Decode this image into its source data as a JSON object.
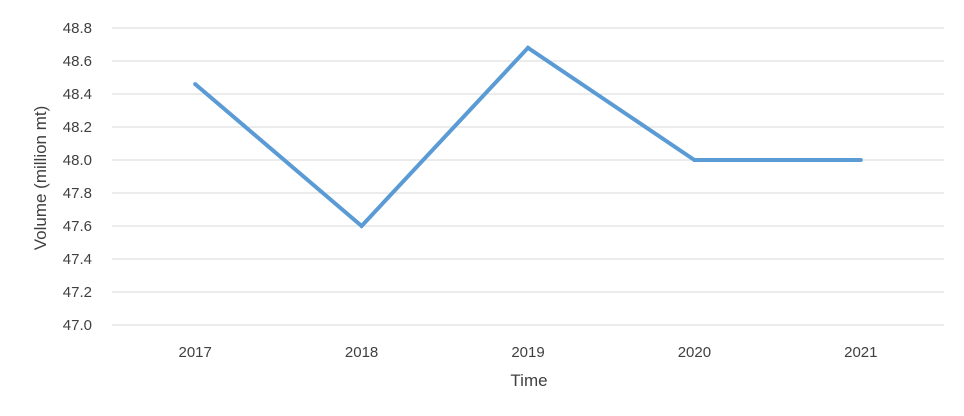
{
  "chart_data": {
    "type": "line",
    "categories": [
      "2017",
      "2018",
      "2019",
      "2020",
      "2021"
    ],
    "series": [
      {
        "values": [
          48.46,
          47.6,
          48.68,
          48.0,
          48.0
        ],
        "color": "#5b9bd5"
      }
    ],
    "xlabel": "Time",
    "ylabel": "Volume (million mt)",
    "ylim": [
      47.0,
      48.8
    ],
    "yticks": [
      "47.0",
      "47.2",
      "47.4",
      "47.6",
      "47.8",
      "48.0",
      "48.2",
      "48.4",
      "48.6",
      "48.8"
    ],
    "grid": true,
    "legend": "none",
    "gridline_color": "#d9d9d9",
    "text_color": "#404040"
  }
}
